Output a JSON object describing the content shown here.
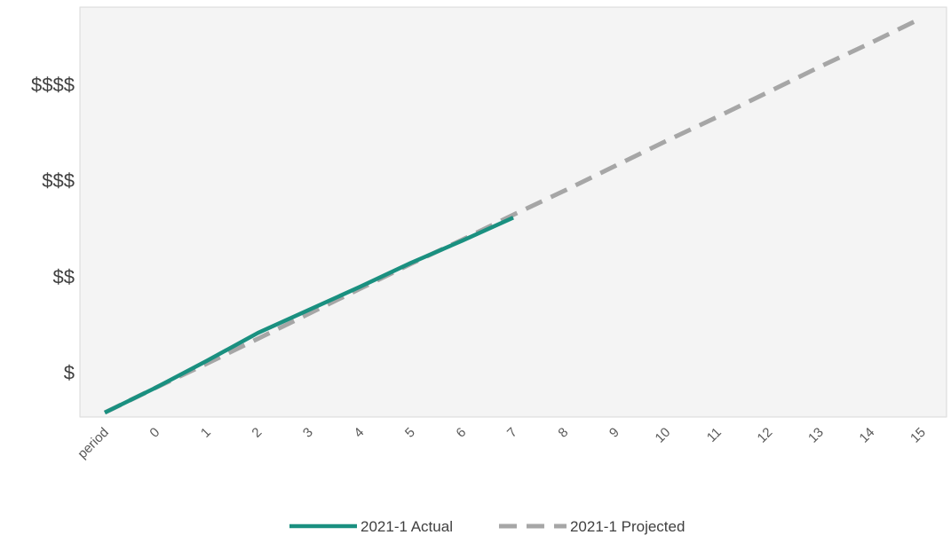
{
  "chart_data": {
    "type": "line",
    "title": "",
    "xlabel": "",
    "ylabel": "",
    "categories": [
      "period",
      "0",
      "1",
      "2",
      "3",
      "4",
      "5",
      "6",
      "7",
      "8",
      "9",
      "10",
      "11",
      "12",
      "13",
      "14",
      "15"
    ],
    "y_tick_labels": [
      "$",
      "$$",
      "$$$",
      "$$$$"
    ],
    "y_tick_values": [
      1,
      2,
      3,
      4
    ],
    "ylim": [
      0.58,
      4.6
    ],
    "grid": false,
    "legend_position": "bottom",
    "series": [
      {
        "name": "2021-1 Actual",
        "color": "#1a9080",
        "style": "solid",
        "values": [
          0.58,
          0.84,
          1.12,
          1.41,
          1.65,
          1.89,
          2.14,
          2.37,
          2.61,
          null,
          null,
          null,
          null,
          null,
          null,
          null,
          null
        ]
      },
      {
        "name": "2021-1 Projected",
        "color": "#a6a6a6",
        "style": "dashed",
        "values": [
          0.58,
          0.84,
          1.09,
          1.35,
          1.61,
          1.87,
          2.13,
          2.38,
          2.64,
          2.89,
          3.15,
          3.41,
          3.66,
          3.92,
          4.18,
          4.43,
          4.69
        ]
      }
    ]
  }
}
